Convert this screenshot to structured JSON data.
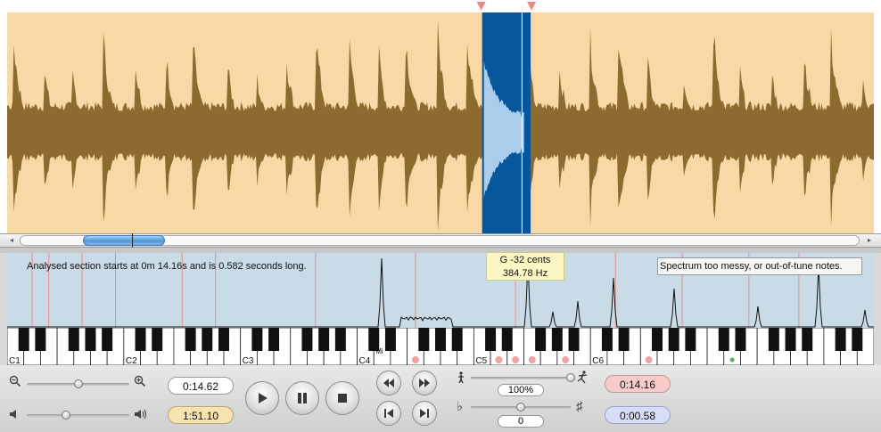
{
  "colors": {
    "wave_bg": "#f8d9a6",
    "wave_fill": "#8d6a2e",
    "selection_bg": "#07569b",
    "selection_wave": "#a9cdeb",
    "spectrum_bg": "#c9dbe6",
    "note_line": "#e88e8e",
    "note_dot": "#f0a3a3",
    "green_dot": "#58b26a",
    "elapsed_field": "#ffffff",
    "duration_field": "#f7e3b0",
    "start_field": "#f8cbc8",
    "length_field": "#d9dcf6"
  },
  "waveform": {
    "selection_start_fraction": 0.548,
    "selection_end_fraction": 0.604,
    "playhead_fraction": 0.594
  },
  "scrollbar": {
    "left_arrow": "◂",
    "right_arrow": "▸"
  },
  "analysis": {
    "info": "Analysed section starts at 0m 14.16s and is 0.582 seconds long.",
    "pitch_note": "G -32 cents",
    "pitch_freq": "384.78 Hz",
    "spectrum_message": "Spectrum too messy, or out-of-tune notes."
  },
  "piano": {
    "octave_labels": [
      "C1",
      "C2",
      "C3",
      "C4",
      "C5",
      "C6"
    ],
    "middle_label": "Mi",
    "highlighted_white_keys": [
      24,
      29,
      30,
      31,
      33,
      38
    ],
    "green_white_keys": [
      43
    ],
    "tone_line_white_keys": [
      1,
      2,
      4,
      6,
      10,
      12,
      18,
      24,
      30,
      36,
      40,
      44,
      47
    ],
    "tone_line_black_fractions": [
      0.05,
      0.17,
      0.49
    ]
  },
  "controls": {
    "zoom_out_icon": "zoom-out-icon",
    "zoom_in_icon": "zoom-in-icon",
    "volume_low_icon": "volume-low-icon",
    "volume_high_icon": "volume-high-icon",
    "zoom_level": 0.5,
    "volume_level": 0.38,
    "elapsed_time": "0:14.62",
    "total_time": "1:51.10",
    "speed_value": "100%",
    "speed_level": 1.0,
    "pitch_value": "0",
    "pitch_level": 0.5,
    "flat_symbol": "♭",
    "sharp_symbol": "♯",
    "selection_start": "0:14.16",
    "selection_length": "0:00.58"
  }
}
